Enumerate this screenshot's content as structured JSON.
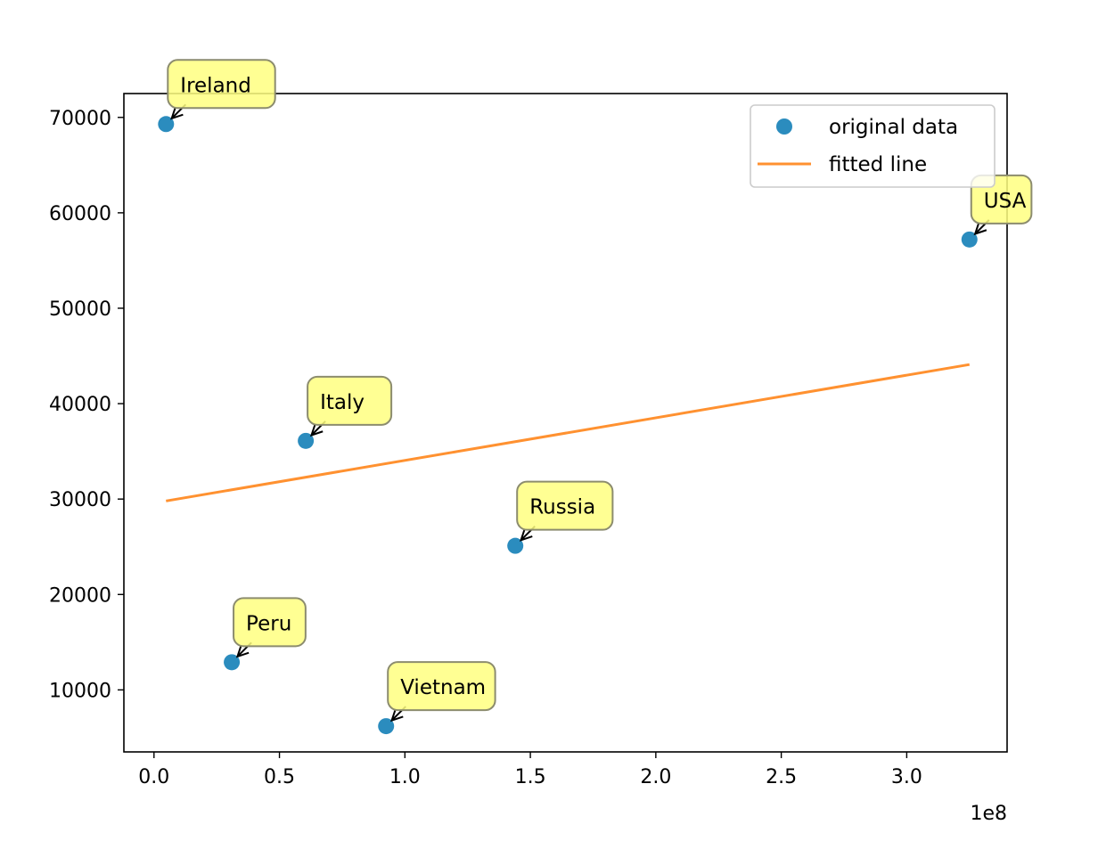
{
  "chart_data": {
    "type": "scatter",
    "title": "",
    "xlabel": "",
    "ylabel": "",
    "x_offset_label": "1e8",
    "xlim": [
      -0.12,
      3.4
    ],
    "ylim": [
      3500,
      72500
    ],
    "x_ticks": [
      0.0,
      0.5,
      1.0,
      1.5,
      2.0,
      2.5,
      3.0
    ],
    "x_tick_labels": [
      "0.0",
      "0.5",
      "1.0",
      "1.5",
      "2.0",
      "2.5",
      "3.0"
    ],
    "y_ticks": [
      10000,
      20000,
      30000,
      40000,
      50000,
      60000,
      70000
    ],
    "y_tick_labels": [
      "10000",
      "20000",
      "30000",
      "40000",
      "50000",
      "60000",
      "70000"
    ],
    "grid": false,
    "legend_position": "upper right",
    "series": [
      {
        "name": "original data",
        "type": "scatter",
        "color": "#2b8cbe",
        "points": [
          {
            "label": "Ireland",
            "x": 0.048,
            "y": 69300
          },
          {
            "label": "Peru",
            "x": 0.31,
            "y": 12900
          },
          {
            "label": "Italy",
            "x": 0.605,
            "y": 36100
          },
          {
            "label": "Vietnam",
            "x": 0.925,
            "y": 6200
          },
          {
            "label": "Russia",
            "x": 1.44,
            "y": 25100
          },
          {
            "label": "USA",
            "x": 3.25,
            "y": 57200
          }
        ]
      },
      {
        "name": "fitted line",
        "type": "line",
        "color": "#ff9130",
        "x": [
          0.048,
          3.25
        ],
        "y": [
          29800,
          44100
        ]
      }
    ],
    "annotation_style": {
      "box_fill": "#ffff80",
      "box_stroke": "#8c8c6e",
      "arrow_color": "#000000"
    }
  }
}
